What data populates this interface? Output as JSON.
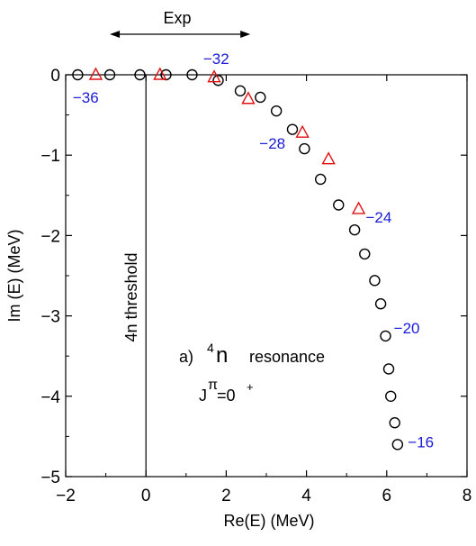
{
  "chart_data": {
    "type": "scatter",
    "title": "",
    "xlabel": "Re(E) (MeV)",
    "ylabel": "Im (E) (MeV)",
    "xlim": [
      -2,
      8
    ],
    "ylim": [
      -5,
      0
    ],
    "xticks": [
      -2,
      0,
      2,
      4,
      6,
      8
    ],
    "yticks": [
      -5,
      -4,
      -3,
      -2,
      -1,
      0
    ],
    "xtick_labels": [
      "−2",
      "0",
      "2",
      "4",
      "6",
      "8"
    ],
    "ytick_labels": [
      "−5",
      "−4",
      "−3",
      "−2",
      "−1",
      "0"
    ],
    "grid": false,
    "series": [
      {
        "marker": "circle",
        "color": "#000000",
        "points": [
          {
            "x": -1.7,
            "y": 0.0
          },
          {
            "x": -0.9,
            "y": 0.0
          },
          {
            "x": -0.15,
            "y": 0.0
          },
          {
            "x": 0.5,
            "y": 0.0
          },
          {
            "x": 1.15,
            "y": 0.0
          },
          {
            "x": 1.8,
            "y": -0.07
          },
          {
            "x": 2.35,
            "y": -0.2
          },
          {
            "x": 2.85,
            "y": -0.28
          },
          {
            "x": 3.25,
            "y": -0.45
          },
          {
            "x": 3.65,
            "y": -0.68
          },
          {
            "x": 3.95,
            "y": -0.92
          },
          {
            "x": 4.35,
            "y": -1.3
          },
          {
            "x": 4.8,
            "y": -1.62
          },
          {
            "x": 5.2,
            "y": -1.93
          },
          {
            "x": 5.45,
            "y": -2.23
          },
          {
            "x": 5.7,
            "y": -2.56
          },
          {
            "x": 5.85,
            "y": -2.85
          },
          {
            "x": 5.97,
            "y": -3.25
          },
          {
            "x": 6.05,
            "y": -3.66
          },
          {
            "x": 6.1,
            "y": -4.0
          },
          {
            "x": 6.2,
            "y": -4.33
          },
          {
            "x": 6.27,
            "y": -4.6
          }
        ]
      },
      {
        "marker": "triangle",
        "color": "#e01010",
        "points": [
          {
            "x": -1.25,
            "y": 0.0
          },
          {
            "x": 0.35,
            "y": 0.0
          },
          {
            "x": 1.7,
            "y": -0.03
          },
          {
            "x": 2.55,
            "y": -0.3
          },
          {
            "x": 3.9,
            "y": -0.72
          },
          {
            "x": 4.55,
            "y": -1.05
          },
          {
            "x": 5.3,
            "y": -1.67
          }
        ]
      }
    ],
    "point_labels": [
      {
        "text": "−36",
        "x": -1.5,
        "y": -0.28
      },
      {
        "text": "−32",
        "x": 1.75,
        "y": 0.2
      },
      {
        "text": "−28",
        "x": 3.15,
        "y": -0.85
      },
      {
        "text": "−24",
        "x": 5.8,
        "y": -1.77
      },
      {
        "text": "−20",
        "x": 6.5,
        "y": -3.15
      },
      {
        "text": "−16",
        "x": 6.85,
        "y": -4.57
      }
    ],
    "annotations": {
      "exp_label": "Exp",
      "exp_range": [
        -0.9,
        2.6
      ],
      "threshold_label": "4n  threshold",
      "threshold_x": 0,
      "resonance_prefix": "a)",
      "resonance_superscript": "4",
      "resonance_main": "n",
      "resonance_suffix": "resonance",
      "jpi_base": "J",
      "jpi_super": "π",
      "jpi_value": "=0",
      "jpi_plus": "+"
    }
  }
}
